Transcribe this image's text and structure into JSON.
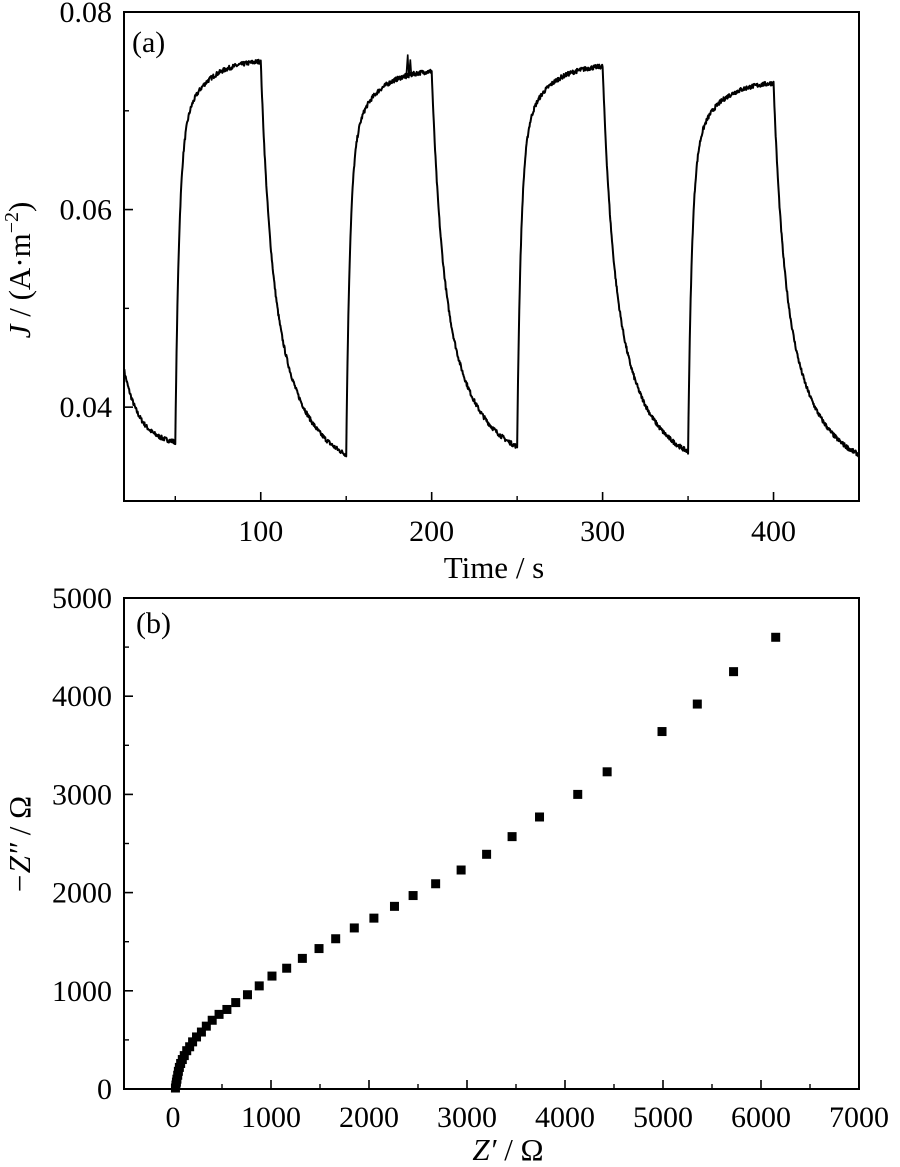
{
  "chart_data": [
    {
      "panel_label": "(a)",
      "type": "line",
      "xlabel": "Time / s",
      "ylabel_italic": "J",
      "ylabel_rest": " / (A·m",
      "ylabel_sup": "−2",
      "ylabel_close": ")",
      "xlim": [
        20,
        450
      ],
      "ylim": [
        0.0305,
        0.08
      ],
      "xticks": [
        100,
        200,
        300,
        400
      ],
      "xtick_labels": [
        "100",
        "200",
        "300",
        "400"
      ],
      "yticks": [
        0.04,
        0.06,
        0.08
      ],
      "ytick_labels": [
        "0.04",
        "0.06",
        "0.08"
      ],
      "grid": false,
      "line_color": "#000000",
      "cycle_period": 100,
      "light_on_times": [
        50,
        150,
        250,
        350
      ],
      "light_off_times": [
        100,
        200,
        300,
        400
      ],
      "start_value": 0.0438,
      "on_peak_values": [
        0.075,
        0.074,
        0.0745,
        0.0728
      ],
      "off_min_values": [
        0.0362,
        0.0352,
        0.036,
        0.0355
      ],
      "end_value": 0.0352,
      "spike": {
        "x": 186,
        "y": 0.0757
      },
      "series": [
        {
          "x": [
            20,
            30,
            40,
            50,
            50.5,
            55,
            60,
            65,
            70,
            80,
            90,
            100,
            100.5,
            105,
            110,
            120,
            130,
            140,
            150,
            150.5,
            155,
            160,
            165,
            170,
            180,
            186,
            190,
            200,
            200.5,
            205,
            210,
            220,
            230,
            240,
            250,
            250.5,
            255,
            260,
            265,
            270,
            280,
            290,
            300,
            300.5,
            305,
            310,
            320,
            330,
            340,
            350,
            350.5,
            355,
            360,
            365,
            370,
            380,
            390,
            400,
            400.5,
            405,
            410,
            420,
            430,
            440,
            450
          ],
          "y": [
            0.0438,
            0.0395,
            0.0378,
            0.0362,
            0.038,
            0.063,
            0.07,
            0.0718,
            0.0728,
            0.074,
            0.0745,
            0.075,
            0.072,
            0.058,
            0.049,
            0.042,
            0.0385,
            0.0365,
            0.0352,
            0.037,
            0.062,
            0.068,
            0.07,
            0.0712,
            0.0725,
            0.0757,
            0.0733,
            0.074,
            0.0715,
            0.057,
            0.0485,
            0.042,
            0.039,
            0.037,
            0.036,
            0.0378,
            0.062,
            0.068,
            0.0705,
            0.0718,
            0.0732,
            0.074,
            0.0745,
            0.072,
            0.0585,
            0.0495,
            0.0425,
            0.039,
            0.0368,
            0.0355,
            0.0372,
            0.061,
            0.067,
            0.0692,
            0.0705,
            0.0715,
            0.0723,
            0.0728,
            0.0705,
            0.0575,
            0.049,
            0.042,
            0.0385,
            0.0365,
            0.0352
          ]
        }
      ]
    },
    {
      "panel_label": "(b)",
      "type": "scatter",
      "xlabel_italic": "Z′",
      "xlabel_rest": " / Ω",
      "ylabel_italic": "−Z″",
      "ylabel_rest": " / Ω",
      "xlim": [
        -500,
        7000
      ],
      "ylim": [
        0,
        5000
      ],
      "xticks": [
        0,
        1000,
        2000,
        3000,
        4000,
        5000,
        6000,
        7000
      ],
      "xtick_labels": [
        "0",
        "1000",
        "2000",
        "3000",
        "4000",
        "5000",
        "6000",
        "7000"
      ],
      "yticks": [
        0,
        1000,
        2000,
        3000,
        4000,
        5000
      ],
      "ytick_labels": [
        "0",
        "1000",
        "2000",
        "3000",
        "4000",
        "5000"
      ],
      "grid": false,
      "marker_color": "#000000",
      "marker": "square",
      "series": [
        {
          "x": [
            25,
            30,
            35,
            40,
            48,
            55,
            65,
            78,
            95,
            115,
            140,
            170,
            200,
            240,
            290,
            340,
            400,
            470,
            550,
            640,
            760,
            880,
            1010,
            1160,
            1320,
            1490,
            1660,
            1850,
            2050,
            2260,
            2450,
            2680,
            2940,
            3200,
            3460,
            3740,
            4130,
            4430,
            4990,
            5350,
            5720,
            6150
          ],
          "y": [
            10,
            40,
            70,
            100,
            140,
            180,
            220,
            260,
            300,
            340,
            390,
            430,
            480,
            530,
            580,
            640,
            700,
            760,
            810,
            880,
            960,
            1050,
            1150,
            1230,
            1330,
            1430,
            1530,
            1640,
            1740,
            1860,
            1970,
            2090,
            2230,
            2390,
            2570,
            2770,
            3000,
            3230,
            3640,
            3920,
            4250,
            4600
          ]
        }
      ]
    }
  ]
}
